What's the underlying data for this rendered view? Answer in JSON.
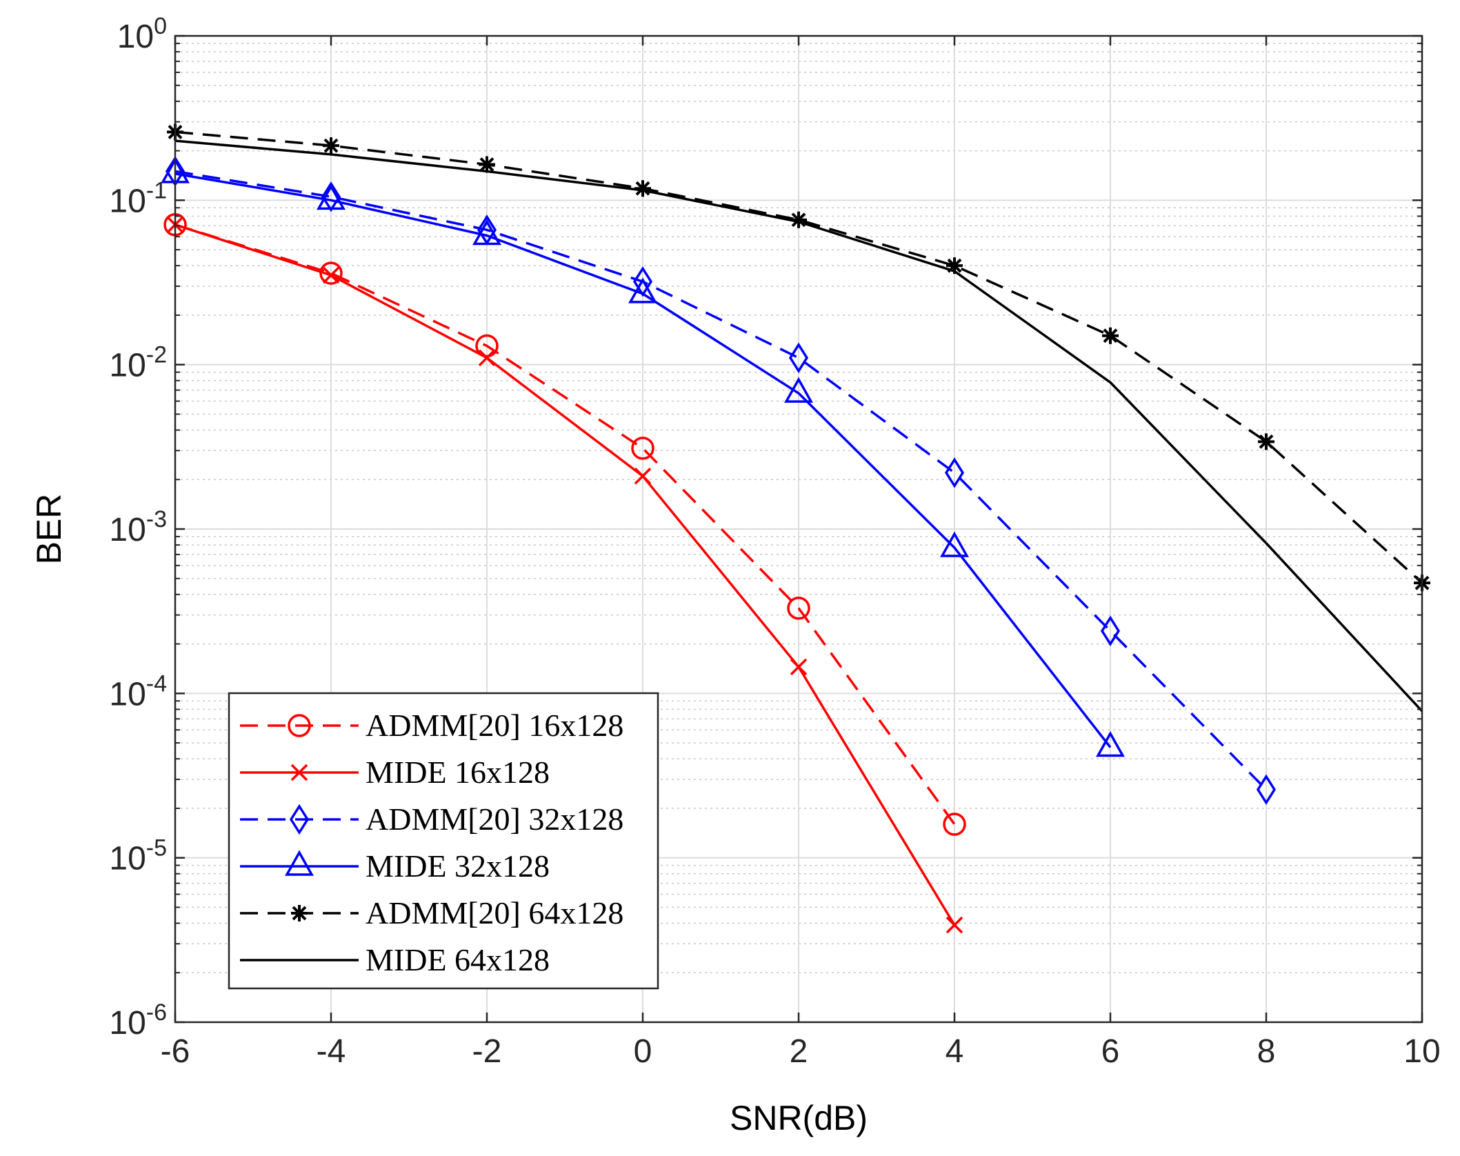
{
  "chart_data": {
    "type": "line",
    "title": "",
    "xlabel": "SNR(dB)",
    "ylabel": "BER",
    "xscale": "linear",
    "yscale": "log",
    "xlim": [
      -6,
      10
    ],
    "ylim": [
      1e-06,
      1
    ],
    "xticks": [
      -6,
      -4,
      -2,
      0,
      2,
      4,
      6,
      8,
      10
    ],
    "xtick_labels": [
      "-6",
      "-4",
      "-2",
      "0",
      "2",
      "4",
      "6",
      "8",
      "10"
    ],
    "yticks": [
      {
        "value": 1e-06,
        "base": "10",
        "exp": "-6"
      },
      {
        "value": 1e-05,
        "base": "10",
        "exp": "-5"
      },
      {
        "value": 0.0001,
        "base": "10",
        "exp": "-4"
      },
      {
        "value": 0.001,
        "base": "10",
        "exp": "-3"
      },
      {
        "value": 0.01,
        "base": "10",
        "exp": "-2"
      },
      {
        "value": 0.1,
        "base": "10",
        "exp": "-1"
      },
      {
        "value": 1,
        "base": "10",
        "exp": "0"
      }
    ],
    "grid": true,
    "legend_position": "bottom-left",
    "series": [
      {
        "name": "ADMM[20] 16x128",
        "color": "#ff0000",
        "linestyle": "dashed",
        "marker": "circle",
        "x": [
          -6,
          -4,
          -2,
          0,
          2,
          4
        ],
        "y": [
          0.071,
          0.036,
          0.013,
          0.0031,
          0.00033,
          1.6e-05
        ]
      },
      {
        "name": "MIDE 16x128",
        "color": "#ff0000",
        "linestyle": "solid",
        "marker": "x",
        "x": [
          -6,
          -4,
          -2,
          0,
          2,
          4
        ],
        "y": [
          0.071,
          0.035,
          0.011,
          0.0021,
          0.000145,
          3.9e-06
        ]
      },
      {
        "name": "ADMM[20] 32x128",
        "color": "#0000ff",
        "linestyle": "dashed",
        "marker": "diamond",
        "x": [
          -6,
          -4,
          -2,
          0,
          2,
          4,
          6,
          8
        ],
        "y": [
          0.15,
          0.105,
          0.066,
          0.032,
          0.011,
          0.0022,
          0.00024,
          2.6e-05
        ]
      },
      {
        "name": "MIDE 32x128",
        "color": "#0000ff",
        "linestyle": "solid",
        "marker": "triangle",
        "x": [
          -6,
          -4,
          -2,
          0,
          2,
          4,
          6
        ],
        "y": [
          0.145,
          0.1,
          0.061,
          0.027,
          0.0067,
          0.00077,
          4.7e-05
        ]
      },
      {
        "name": "ADMM[20] 64x128",
        "color": "#000000",
        "linestyle": "dashed",
        "marker": "asterisk",
        "x": [
          -6,
          -4,
          -2,
          0,
          2,
          4,
          6,
          8,
          10
        ],
        "y": [
          0.26,
          0.215,
          0.165,
          0.118,
          0.076,
          0.04,
          0.015,
          0.0034,
          0.00047
        ]
      },
      {
        "name": "MIDE 64x128",
        "color": "#000000",
        "linestyle": "solid",
        "marker": "none",
        "x": [
          -6,
          -4,
          -2,
          0,
          2,
          4,
          6,
          8,
          10
        ],
        "y": [
          0.23,
          0.19,
          0.15,
          0.115,
          0.074,
          0.037,
          0.0078,
          0.00082,
          7.8e-05
        ]
      }
    ]
  }
}
